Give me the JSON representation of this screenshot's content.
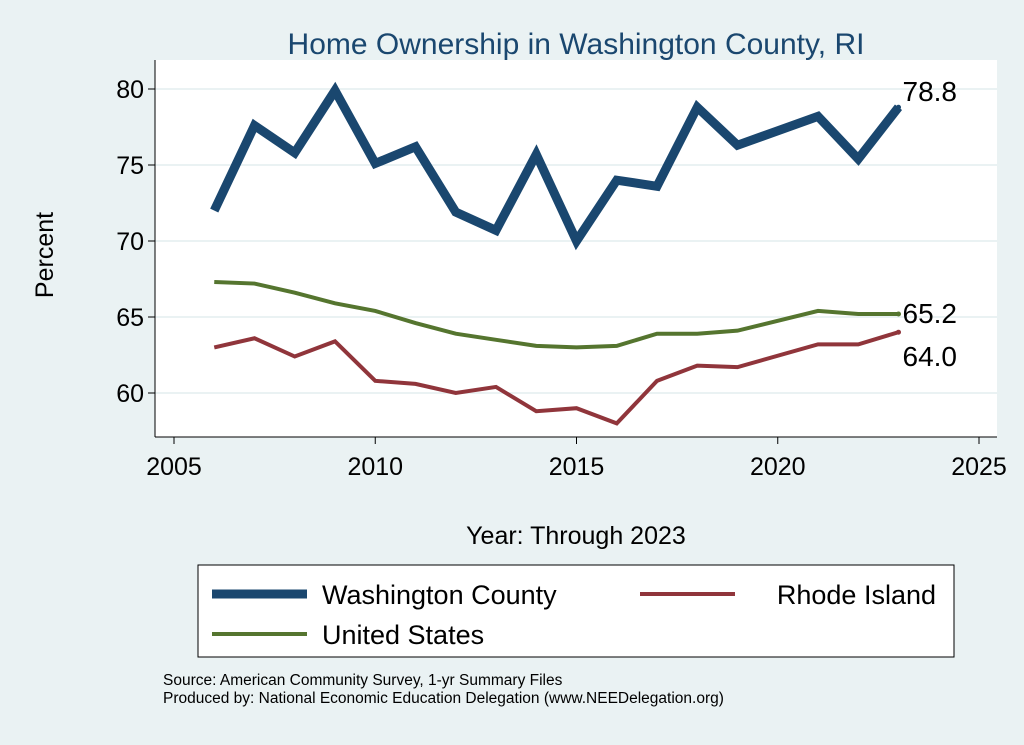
{
  "chart_data": {
    "type": "line",
    "title": "Home Ownership in Washington County, RI",
    "xlabel": "Year: Through 2023",
    "ylabel": "Percent",
    "xlim": [
      2005,
      2025
    ],
    "ylim": [
      58,
      81
    ],
    "x_ticks": [
      2005,
      2010,
      2015,
      2020,
      2025
    ],
    "y_ticks": [
      60,
      65,
      70,
      75,
      80
    ],
    "grid": true,
    "legend_placement": "bottom",
    "series": [
      {
        "name": "Washington County",
        "color": "#1a476f",
        "x": [
          2006,
          2007,
          2008,
          2009,
          2010,
          2011,
          2012,
          2013,
          2014,
          2015,
          2016,
          2017,
          2018,
          2019,
          2021,
          2022,
          2023
        ],
        "values": [
          72.0,
          77.6,
          75.8,
          79.9,
          75.1,
          76.2,
          71.9,
          70.7,
          75.7,
          70.0,
          74.0,
          73.6,
          78.8,
          76.3,
          78.2,
          75.4,
          78.8
        ],
        "end_label": "78.8"
      },
      {
        "name": "Rhode Island",
        "color": "#90353b",
        "x": [
          2006,
          2007,
          2008,
          2009,
          2010,
          2011,
          2012,
          2013,
          2014,
          2015,
          2016,
          2017,
          2018,
          2019,
          2021,
          2022,
          2023
        ],
        "values": [
          63.0,
          63.6,
          62.4,
          63.4,
          60.8,
          60.6,
          60.0,
          60.4,
          58.8,
          59.0,
          58.0,
          60.8,
          61.8,
          61.7,
          63.2,
          63.2,
          64.0
        ],
        "end_label": "64.0"
      },
      {
        "name": "United States",
        "color": "#55752f",
        "x": [
          2006,
          2007,
          2008,
          2009,
          2010,
          2011,
          2012,
          2013,
          2014,
          2015,
          2016,
          2017,
          2018,
          2019,
          2021,
          2022,
          2023
        ],
        "values": [
          67.3,
          67.2,
          66.6,
          65.9,
          65.4,
          64.6,
          63.9,
          63.5,
          63.1,
          63.0,
          63.1,
          63.9,
          63.9,
          64.1,
          65.4,
          65.2,
          65.2
        ],
        "end_label": "65.2"
      }
    ]
  },
  "notes": {
    "source": "Source: American Community Survey, 1-yr Summary Files",
    "producer": "Produced by: National Economic Education Delegation (www.NEEDelegation.org)"
  }
}
